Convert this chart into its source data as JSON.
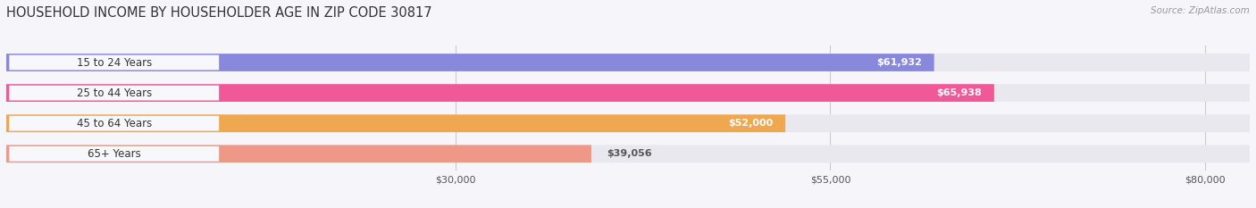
{
  "title": "HOUSEHOLD INCOME BY HOUSEHOLDER AGE IN ZIP CODE 30817",
  "source": "Source: ZipAtlas.com",
  "categories": [
    "15 to 24 Years",
    "25 to 44 Years",
    "45 to 64 Years",
    "65+ Years"
  ],
  "values": [
    61932,
    65938,
    52000,
    39056
  ],
  "bar_colors": [
    "#8888dd",
    "#f05898",
    "#f0a850",
    "#f09888"
  ],
  "bar_bg_color": "#e8e8ee",
  "label_bg_color": "#f8f8fc",
  "value_labels": [
    "$61,932",
    "$65,938",
    "$52,000",
    "$39,056"
  ],
  "x_ticks": [
    30000,
    55000,
    80000
  ],
  "x_tick_labels": [
    "$30,000",
    "$55,000",
    "$80,000"
  ],
  "xlim_min": 0,
  "xlim_max": 83000,
  "background_color": "#f5f5fa",
  "title_fontsize": 10.5,
  "source_fontsize": 7.5,
  "bar_label_fontsize": 8.5,
  "value_fontsize": 8.0,
  "tick_fontsize": 8.0,
  "grid_color": "#cccccc",
  "category_text_color": "#333333",
  "value_inside_color": "#ffffff",
  "value_outside_color": "#555555"
}
